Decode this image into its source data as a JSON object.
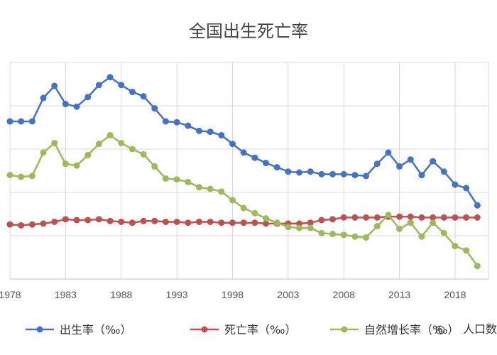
{
  "chart_data": {
    "type": "line",
    "title": "全国出生死亡率",
    "xlabel": "",
    "ylabel": "",
    "x": [
      1978,
      1979,
      1980,
      1981,
      1982,
      1983,
      1984,
      1985,
      1986,
      1987,
      1988,
      1989,
      1990,
      1991,
      1992,
      1993,
      1994,
      1995,
      1996,
      1997,
      1998,
      1999,
      2000,
      2001,
      2002,
      2003,
      2004,
      2005,
      2006,
      2007,
      2008,
      2009,
      2010,
      2011,
      2012,
      2013,
      2014,
      2015,
      2016,
      2017,
      2018,
      2019,
      2020
    ],
    "x_tick_labels": [
      "1978",
      "1983",
      "1988",
      "1993",
      "1998",
      "2003",
      "2008",
      "2013",
      "2018"
    ],
    "x_tick_values": [
      1978,
      1983,
      1988,
      1993,
      1998,
      2003,
      2008,
      2013,
      2018
    ],
    "xlim": [
      1978,
      2021
    ],
    "ylim": [
      0,
      25
    ],
    "y_gridlines": [
      0,
      5,
      10,
      15,
      20,
      25
    ],
    "y_tick_labels_visible": false,
    "grid": true,
    "legend_position": "bottom",
    "series": [
      {
        "name": "出生率（‰）",
        "color": "#4472C4",
        "values": [
          18.2,
          18.2,
          18.2,
          20.9,
          22.3,
          20.2,
          19.9,
          21.0,
          22.4,
          23.3,
          22.4,
          21.6,
          21.1,
          19.7,
          18.2,
          18.1,
          17.7,
          17.1,
          17.0,
          16.6,
          15.6,
          14.6,
          14.0,
          13.4,
          12.9,
          12.4,
          12.3,
          12.4,
          12.1,
          12.1,
          12.1,
          12.0,
          11.9,
          13.3,
          14.6,
          13.0,
          13.8,
          12.0,
          13.6,
          12.4,
          10.9,
          10.5,
          8.5
        ]
      },
      {
        "name": "死亡率（‰）",
        "color": "#C0504D",
        "values": [
          6.3,
          6.2,
          6.3,
          6.4,
          6.6,
          6.9,
          6.8,
          6.8,
          6.9,
          6.7,
          6.6,
          6.5,
          6.7,
          6.7,
          6.6,
          6.6,
          6.5,
          6.6,
          6.6,
          6.5,
          6.5,
          6.5,
          6.5,
          6.4,
          6.4,
          6.4,
          6.4,
          6.5,
          6.8,
          6.9,
          7.1,
          7.1,
          7.1,
          7.1,
          7.2,
          7.2,
          7.2,
          7.1,
          7.1,
          7.1,
          7.1,
          7.1,
          7.1
        ]
      },
      {
        "name": "自然增长率（‰）",
        "color": "#9BBB59",
        "values": [
          12.0,
          11.8,
          11.9,
          14.6,
          15.7,
          13.3,
          13.1,
          14.3,
          15.6,
          16.6,
          15.7,
          15.0,
          14.4,
          13.0,
          11.6,
          11.5,
          11.2,
          10.6,
          10.4,
          10.1,
          9.1,
          8.2,
          7.6,
          7.0,
          6.5,
          6.0,
          5.9,
          5.9,
          5.3,
          5.2,
          5.1,
          4.9,
          4.8,
          6.1,
          7.4,
          5.8,
          6.5,
          4.9,
          6.5,
          5.3,
          3.8,
          3.3,
          1.5
        ]
      }
    ]
  },
  "legend_note": {
    "visible_fragment": "人口数",
    "icon": "chat-bubble-watermark-icon",
    "icon_glyph": "◎"
  }
}
